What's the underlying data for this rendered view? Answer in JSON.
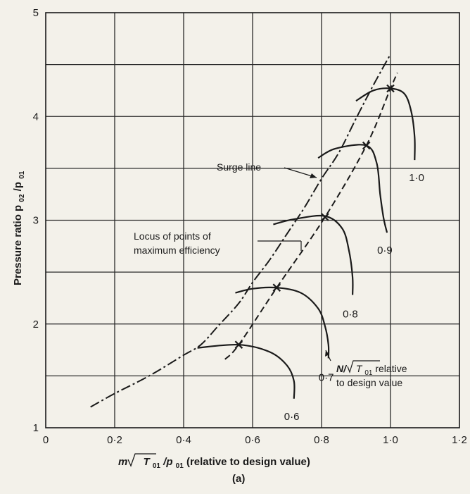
{
  "chart_data": {
    "type": "line",
    "xlabel_prefix": "m",
    "xlabel_sub": "01",
    "xlabel_mid": "T",
    "xlabel_tail": "/p",
    "xlabel_suffix": " (relative to design value)",
    "ylabel_text": "Pressure ratio p",
    "ylabel_sub1": "02",
    "ylabel_mid": "/p",
    "ylabel_sub2": "01",
    "caption": "(a)",
    "xlim": [
      0,
      1.2
    ],
    "ylim": [
      1,
      5
    ],
    "x_ticks": [
      {
        "v": 0,
        "t": "0"
      },
      {
        "v": 0.2,
        "t": "0·2"
      },
      {
        "v": 0.4,
        "t": "0·4"
      },
      {
        "v": 0.6,
        "t": "0·6"
      },
      {
        "v": 0.8,
        "t": "0·8"
      },
      {
        "v": 1.0,
        "t": "1·0"
      },
      {
        "v": 1.2,
        "t": "1·2"
      }
    ],
    "y_ticks": [
      {
        "v": 1,
        "t": "1"
      },
      {
        "v": 2,
        "t": "2"
      },
      {
        "v": 3,
        "t": "3"
      },
      {
        "v": 4,
        "t": "4"
      },
      {
        "v": 5,
        "t": "5"
      }
    ],
    "grid": true,
    "surge_line": {
      "label": "Surge line",
      "x": [
        0.13,
        0.2,
        0.3,
        0.4,
        0.45,
        0.5,
        0.56,
        0.6,
        0.65,
        0.7,
        0.75,
        0.8,
        0.85,
        0.9,
        0.95,
        1.0
      ],
      "y": [
        1.2,
        1.33,
        1.5,
        1.7,
        1.8,
        1.98,
        2.2,
        2.4,
        2.62,
        2.87,
        3.12,
        3.4,
        3.65,
        3.98,
        4.3,
        4.6
      ]
    },
    "max_efficiency_locus": {
      "label_line1": "Locus of points of",
      "label_line2": "maximum efficiency",
      "x": [
        0.52,
        0.56,
        0.67,
        0.81,
        0.93,
        1.0,
        1.02
      ],
      "y": [
        1.66,
        1.8,
        2.35,
        3.03,
        3.72,
        4.27,
        4.42
      ]
    },
    "speed_lines": [
      {
        "name": "0·6",
        "x": [
          0.44,
          0.56,
          0.65,
          0.7,
          0.72,
          0.72
        ],
        "y": [
          1.77,
          1.8,
          1.73,
          1.6,
          1.45,
          1.28
        ]
      },
      {
        "name": "0·7",
        "x": [
          0.55,
          0.6,
          0.67,
          0.74,
          0.79,
          0.81,
          0.82,
          0.82
        ],
        "y": [
          2.3,
          2.34,
          2.35,
          2.3,
          2.15,
          1.98,
          1.8,
          1.67
        ]
      },
      {
        "name": "0·8",
        "x": [
          0.66,
          0.72,
          0.81,
          0.86,
          0.88,
          0.89,
          0.89
        ],
        "y": [
          2.96,
          3.01,
          3.04,
          2.92,
          2.7,
          2.45,
          2.28
        ]
      },
      {
        "name": "0·9",
        "x": [
          0.79,
          0.84,
          0.93,
          0.96,
          0.97,
          0.98,
          0.99
        ],
        "y": [
          3.6,
          3.69,
          3.72,
          3.55,
          3.25,
          3.02,
          2.88
        ]
      },
      {
        "name": "1·0",
        "x": [
          0.9,
          0.95,
          1.0,
          1.04,
          1.06,
          1.07,
          1.07
        ],
        "y": [
          4.15,
          4.25,
          4.27,
          4.22,
          4.05,
          3.8,
          3.58
        ]
      }
    ],
    "speed_label_prefix": "N/",
    "speed_label_mid": "T",
    "speed_label_sub": "01",
    "speed_label_suffix": " relative",
    "speed_label_line2": "to design value"
  }
}
